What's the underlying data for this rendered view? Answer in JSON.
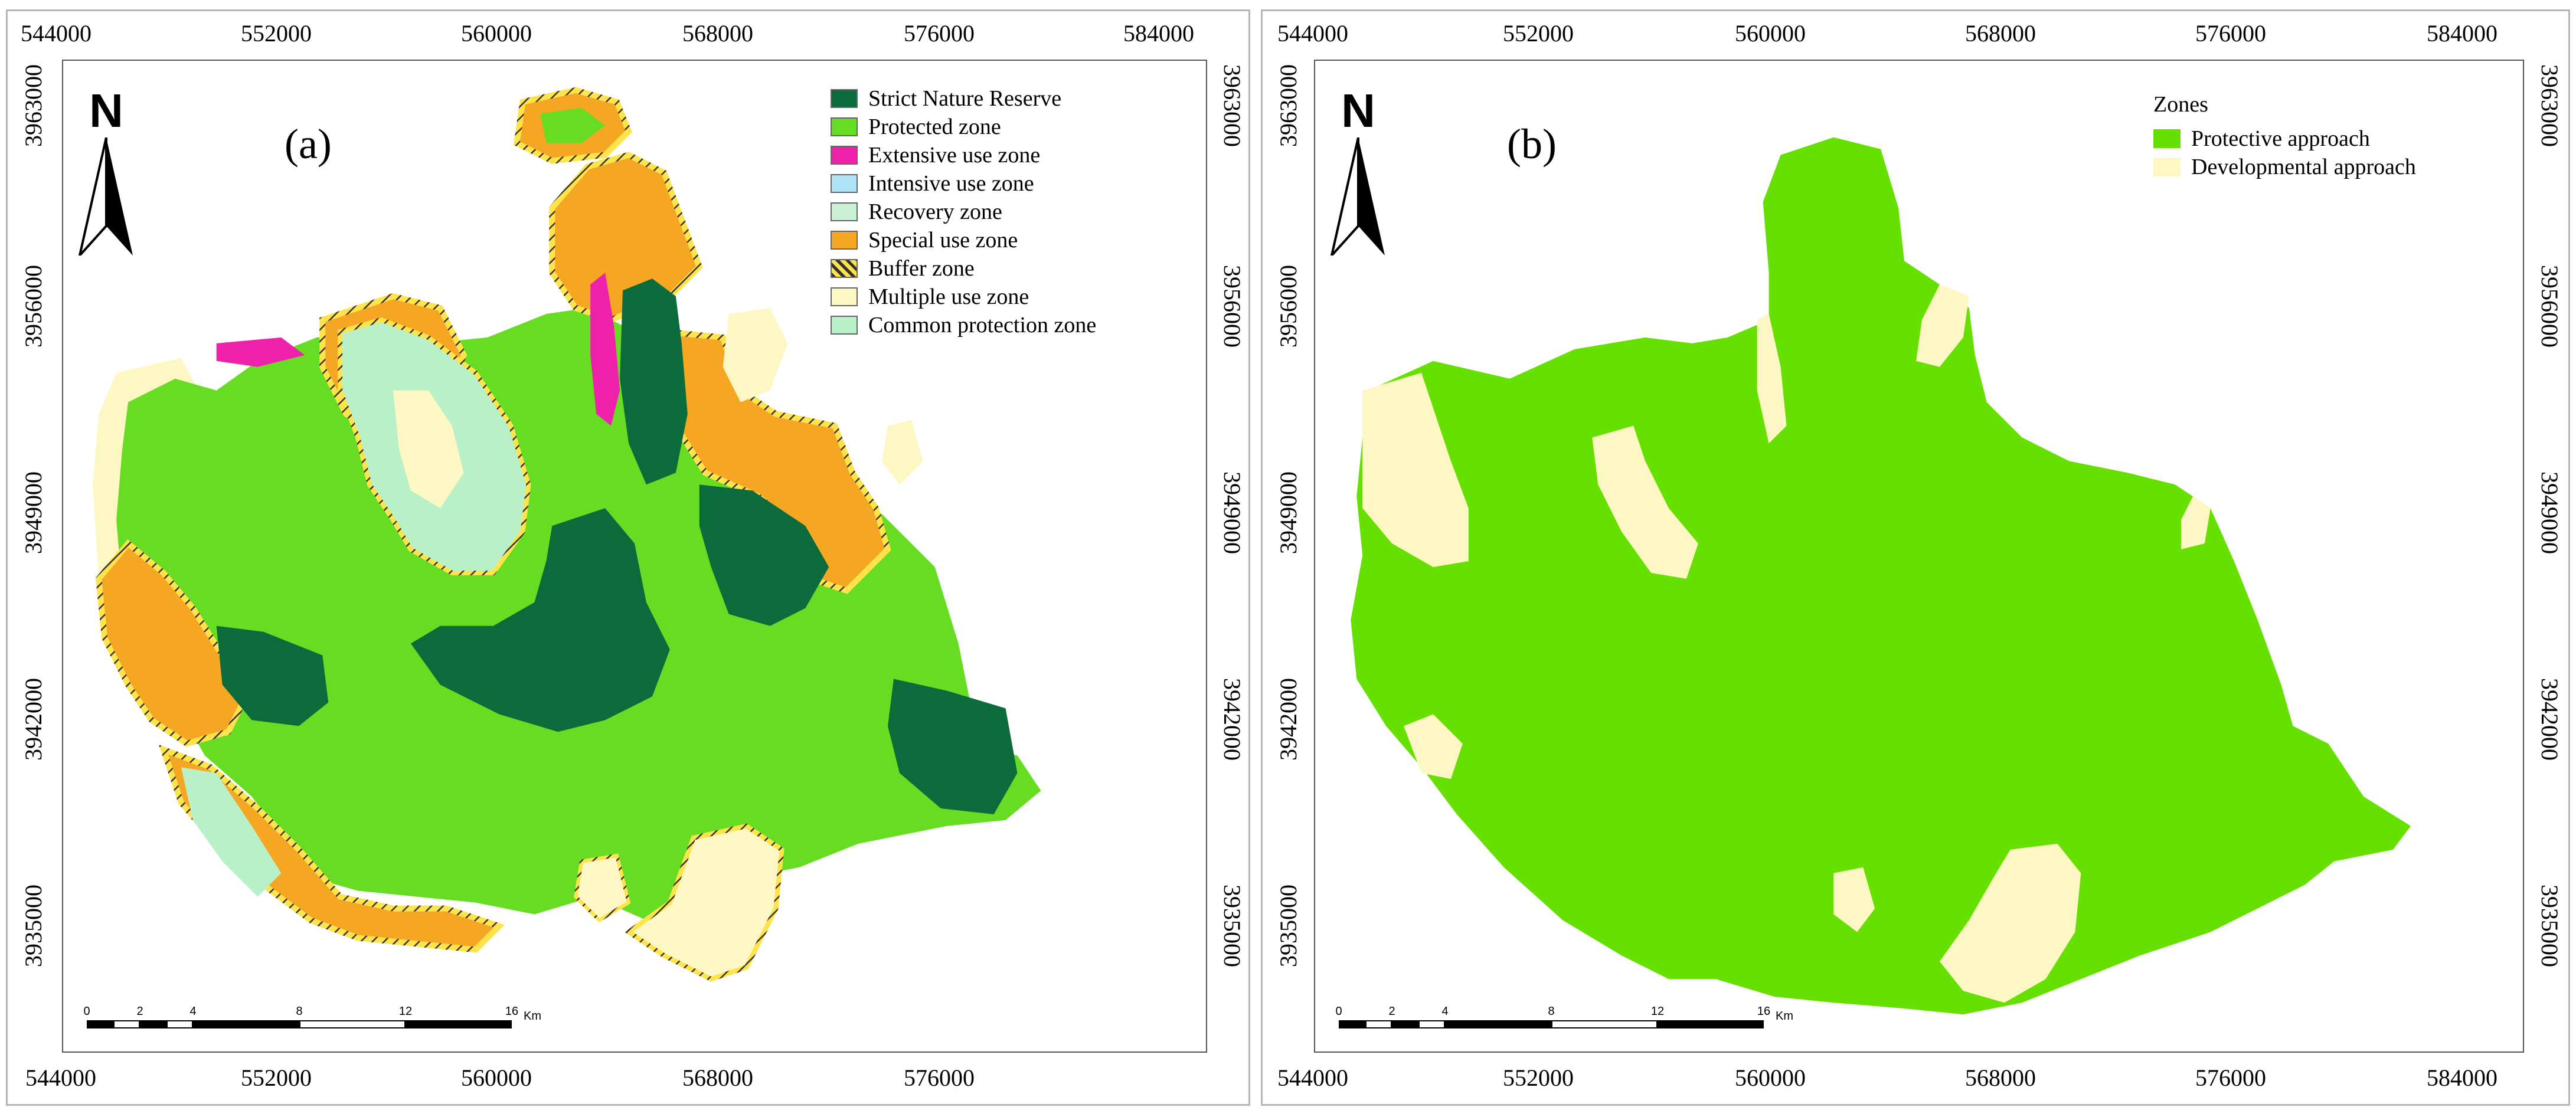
{
  "panel_a": {
    "label": "(a)",
    "legend": [
      {
        "name": "Strict Nature Reserve",
        "color": "#0b6b3a"
      },
      {
        "name": "Protected zone",
        "color": "#66dd22"
      },
      {
        "name": "Extensive use zone",
        "color": "#ee22aa"
      },
      {
        "name": "Intensive use zone",
        "color": "#aee3f5"
      },
      {
        "name": "Recovery zone",
        "color": "#c9f0d3"
      },
      {
        "name": "Special use zone",
        "color": "#f5a623"
      },
      {
        "name": "Buffer zone",
        "color": "hatch"
      },
      {
        "name": "Multiple use zone",
        "color": "#fdf7c3"
      },
      {
        "name": "Common protection zone",
        "color": "#b8f0c8"
      }
    ]
  },
  "panel_b": {
    "label": "(b)",
    "legend_title": "Zones",
    "legend": [
      {
        "name": "Protective approach",
        "color": "#66e000"
      },
      {
        "name": "Developmental approach",
        "color": "#fdf7c3"
      }
    ]
  },
  "axes": {
    "x_ticks": [
      "544000",
      "552000",
      "560000",
      "568000",
      "576000",
      "584000"
    ],
    "y_ticks": [
      "3963000",
      "3956000",
      "3949000",
      "3942000",
      "3935000"
    ]
  },
  "north_label": "N",
  "scalebar": {
    "labels": [
      "0",
      "2",
      "4",
      "8",
      "12",
      "16"
    ],
    "unit": "Km"
  }
}
